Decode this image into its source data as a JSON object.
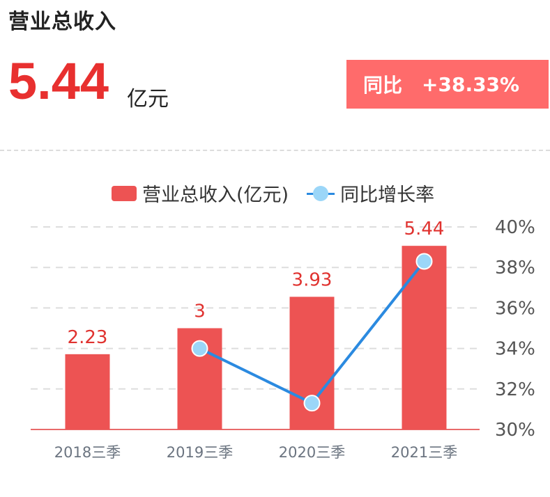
{
  "header": {
    "title": "营业总收入",
    "value": "5.44",
    "unit": "亿元",
    "yoy_label": "同比",
    "yoy_value": "+38.33%"
  },
  "legend": {
    "bar_label": "营业总收入(亿元)",
    "line_label": "同比增长率"
  },
  "colors": {
    "bar": "#ed5353",
    "line": "#2b8ae0",
    "point": "#9bd6f8",
    "bar_label": "#e0322f",
    "badge": "#ff6b6b"
  },
  "chart_data": {
    "type": "bar",
    "categories": [
      "2018三季",
      "2019三季",
      "2020三季",
      "2021三季"
    ],
    "series": [
      {
        "name": "营业总收入(亿元)",
        "type": "bar",
        "values": [
          2.23,
          3,
          3.93,
          5.44
        ],
        "labels": [
          "2.23",
          "3",
          "3.93",
          "5.44"
        ]
      },
      {
        "name": "同比增长率",
        "type": "line",
        "axis": "right",
        "values": [
          null,
          34.0,
          31.3,
          38.3
        ]
      }
    ],
    "y_right": {
      "ticks": [
        30,
        32,
        34,
        36,
        38,
        40
      ],
      "tick_labels": [
        "30%",
        "32%",
        "34%",
        "36%",
        "38%",
        "40%"
      ],
      "range": [
        30,
        40
      ]
    },
    "y_left_range": [
      0,
      6.0
    ],
    "grid": true,
    "legend_position": "top"
  }
}
